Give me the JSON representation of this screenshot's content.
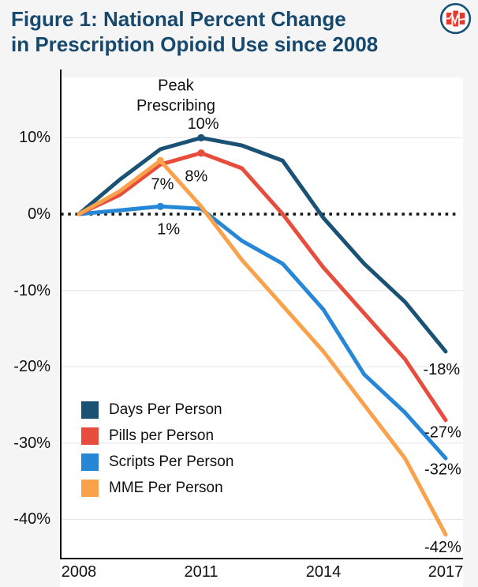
{
  "page": {
    "background_color": "#f5f5f6",
    "plot_background_color": "#ffffff"
  },
  "header": {
    "title_line1": "Figure 1: National Percent Change",
    "title_line2": "in Prescription Opioid Use since 2008",
    "title_color": "#17496e",
    "logo_icon": "circle-red-bars-ekg-logo",
    "logo_ring_color": "#1a5276",
    "logo_bar_color": "#e8392e"
  },
  "chart_data": {
    "type": "line",
    "title": "Figure 1: National Percent Change in Prescription Opioid Use since 2008",
    "xlabel": "",
    "ylabel": "",
    "unit": "% change since 2008",
    "x": [
      2008,
      2009,
      2010,
      2011,
      2012,
      2013,
      2014,
      2015,
      2016,
      2017
    ],
    "x_ticks": [
      2008,
      2011,
      2014,
      2017
    ],
    "x_tick_labels": [
      "2008",
      "2011",
      "2014",
      "2017"
    ],
    "y_ticks": [
      10,
      0,
      -10,
      -20,
      -30,
      -40
    ],
    "y_tick_labels": [
      "10%",
      "0%",
      "-10%",
      "-20%",
      "-30%",
      "-40%"
    ],
    "ylim": [
      -45,
      17.5
    ],
    "grid": "horizontal light gridlines; dotted black line at 0%",
    "grid_color": "#e7e9ed",
    "zero_line_color": "#141414",
    "axis_color": "#000000",
    "legend_position": "inside lower-left",
    "series": [
      {
        "name": "Days Per Person",
        "color": "#1a5276",
        "values": [
          0,
          4.5,
          8.5,
          10,
          9,
          7,
          -0.5,
          -6.5,
          -11.5,
          -18
        ],
        "marker_year": 2011,
        "peak_label": "10%",
        "end_label": "-18%"
      },
      {
        "name": "Pills per Person",
        "color": "#e74c3c",
        "values": [
          0,
          2.5,
          6.5,
          8,
          6,
          0,
          -7,
          -13,
          -19,
          -27
        ],
        "marker_year": 2011,
        "peak_label": "8%",
        "end_label": "-27%"
      },
      {
        "name": "Scripts Per Person",
        "color": "#2787d7",
        "values": [
          0,
          0.5,
          1,
          0.7,
          -3.5,
          -6.5,
          -12.5,
          -21,
          -26,
          -32
        ],
        "marker_year": 2010,
        "peak_label": "1%",
        "end_label": "-32%"
      },
      {
        "name": "MME Per Person",
        "color": "#f9a14b",
        "values": [
          0,
          3,
          7,
          1,
          -6,
          -12,
          -18,
          -25,
          -32,
          -42
        ],
        "marker_year": 2010,
        "peak_label": "7%",
        "end_label": "-42%"
      }
    ],
    "draw_order": [
      2,
      1,
      0,
      3
    ],
    "annotations": [
      {
        "text": "Peak",
        "year": 2010.38,
        "value": 16.8
      },
      {
        "text": "Prescribing",
        "year": 2010.38,
        "value": 14.2
      },
      {
        "text": "10%",
        "year": 2011.05,
        "value": 11.8
      },
      {
        "text": "8%",
        "year": 2010.88,
        "value": 4.9
      },
      {
        "text": "7%",
        "year": 2010.05,
        "value": 3.9
      },
      {
        "text": "1%",
        "year": 2010.2,
        "value": -2.0
      },
      {
        "text": "-18%",
        "year": 2016.9,
        "value": -20.4
      },
      {
        "text": "-27%",
        "year": 2016.93,
        "value": -28.6
      },
      {
        "text": "-32%",
        "year": 2016.93,
        "value": -33.5
      },
      {
        "text": "-42%",
        "year": 2016.93,
        "value": -43.7
      }
    ]
  }
}
